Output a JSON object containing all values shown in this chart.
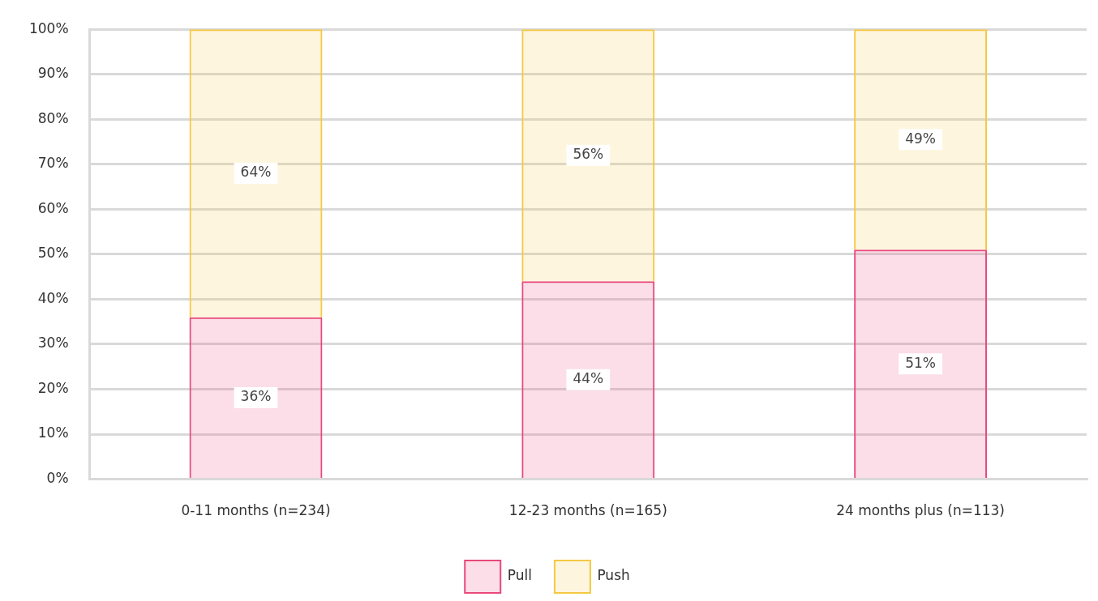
{
  "chart_data": {
    "type": "bar",
    "stacked": true,
    "categories": [
      "0-11 months (n=234)",
      "12-23 months (n=165)",
      "24 months plus (n=113)"
    ],
    "series": [
      {
        "name": "Pull",
        "color": "#e8497a",
        "values": [
          36,
          44,
          51
        ],
        "value_labels": [
          "36%",
          "44%",
          "51%"
        ]
      },
      {
        "name": "Push",
        "color": "#f5c842",
        "values": [
          64,
          56,
          49
        ],
        "value_labels": [
          "64%",
          "56%",
          "49%"
        ]
      }
    ],
    "ylim": [
      0,
      100
    ],
    "yticks": [
      {
        "value": 0,
        "label": "0%"
      },
      {
        "value": 10,
        "label": "10%"
      },
      {
        "value": 20,
        "label": "20%"
      },
      {
        "value": 30,
        "label": "30%"
      },
      {
        "value": 40,
        "label": "40%"
      },
      {
        "value": 50,
        "label": "50%"
      },
      {
        "value": 60,
        "label": "60%"
      },
      {
        "value": 70,
        "label": "70%"
      },
      {
        "value": 80,
        "label": "80%"
      },
      {
        "value": 90,
        "label": "90%"
      },
      {
        "value": 100,
        "label": "100%"
      }
    ],
    "grid": "y",
    "legend": "bottom"
  }
}
